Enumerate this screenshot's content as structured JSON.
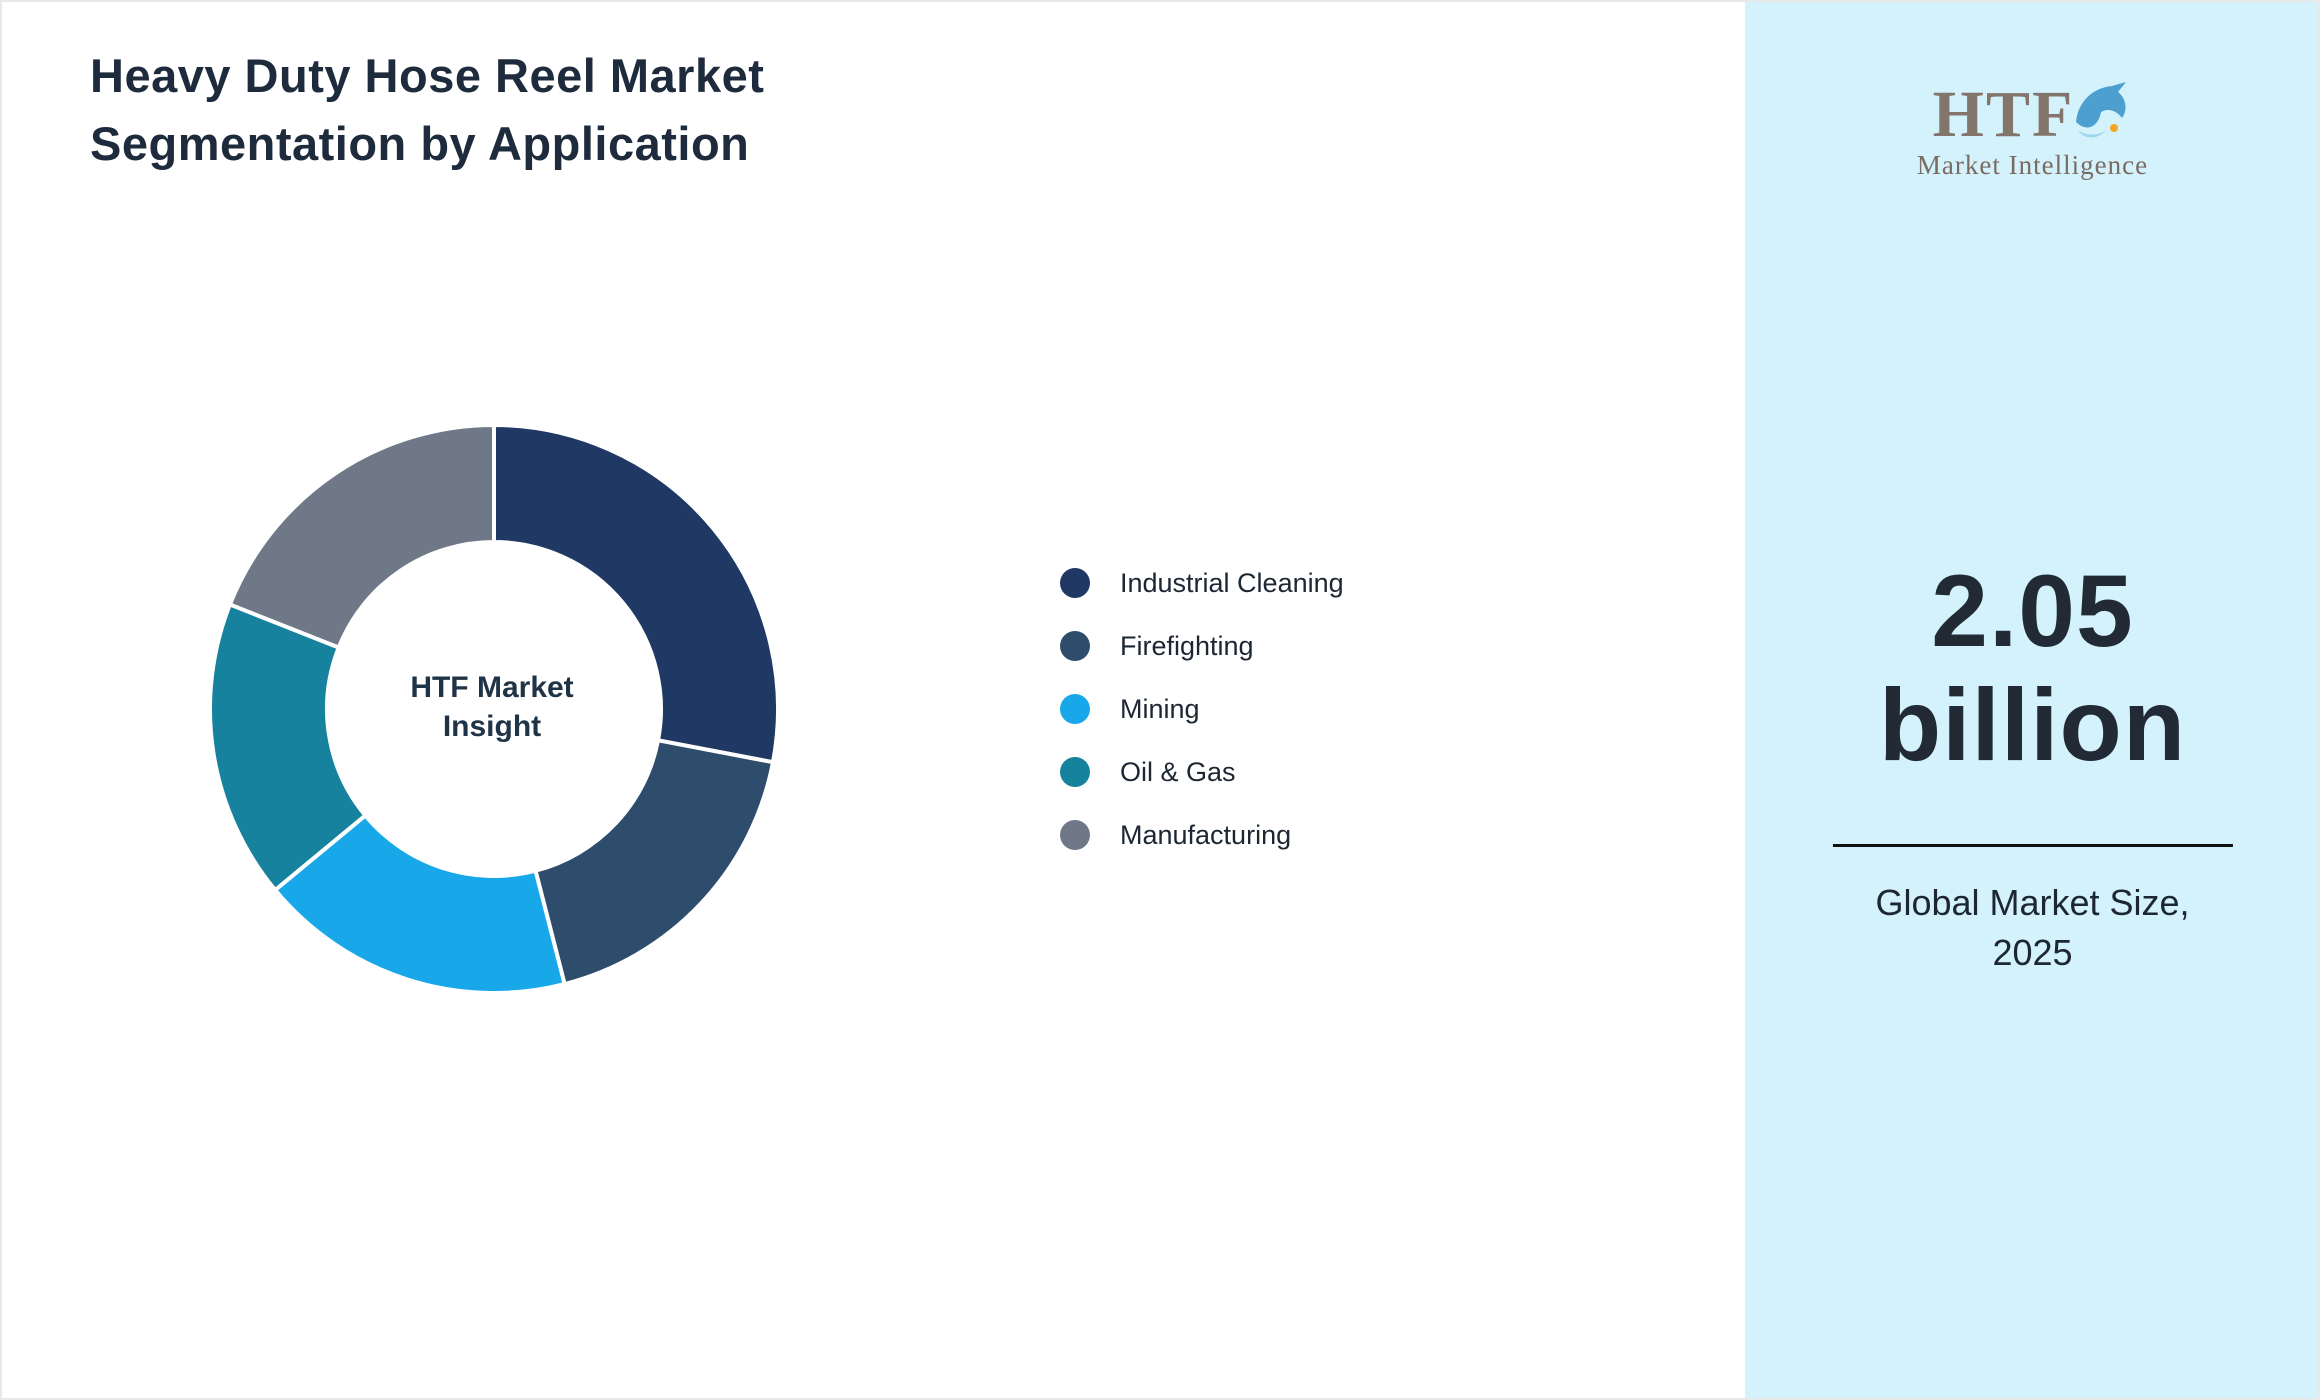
{
  "page": {
    "title": "Heavy Duty Hose Reel Market\nSegmentation by Application"
  },
  "chart_data": {
    "type": "pie",
    "donut": true,
    "start_angle_deg": 0,
    "direction": "clockwise",
    "center_label": "HTF Market\nInsight",
    "categories": [
      "Industrial Cleaning",
      "Firefighting",
      "Mining",
      "Oil & Gas",
      "Manufacturing"
    ],
    "values": [
      28,
      18,
      18,
      17,
      19
    ],
    "colors": [
      "#1f3864",
      "#2e4d6d",
      "#18a8ea",
      "#17829e",
      "#6e7886"
    ],
    "legend_position": "right",
    "slice_gap_color": "#ffffff"
  },
  "sidebar": {
    "background": "#d3f2fb",
    "logo": {
      "text": "HTF",
      "subtext": "Market Intelligence",
      "icon": "dolphin-icon",
      "text_color": "#84756c",
      "icon_color": "#4d9fd0"
    },
    "market_size_value": "2.05\nbillion",
    "market_size_label": "Global Market Size,\n2025"
  }
}
